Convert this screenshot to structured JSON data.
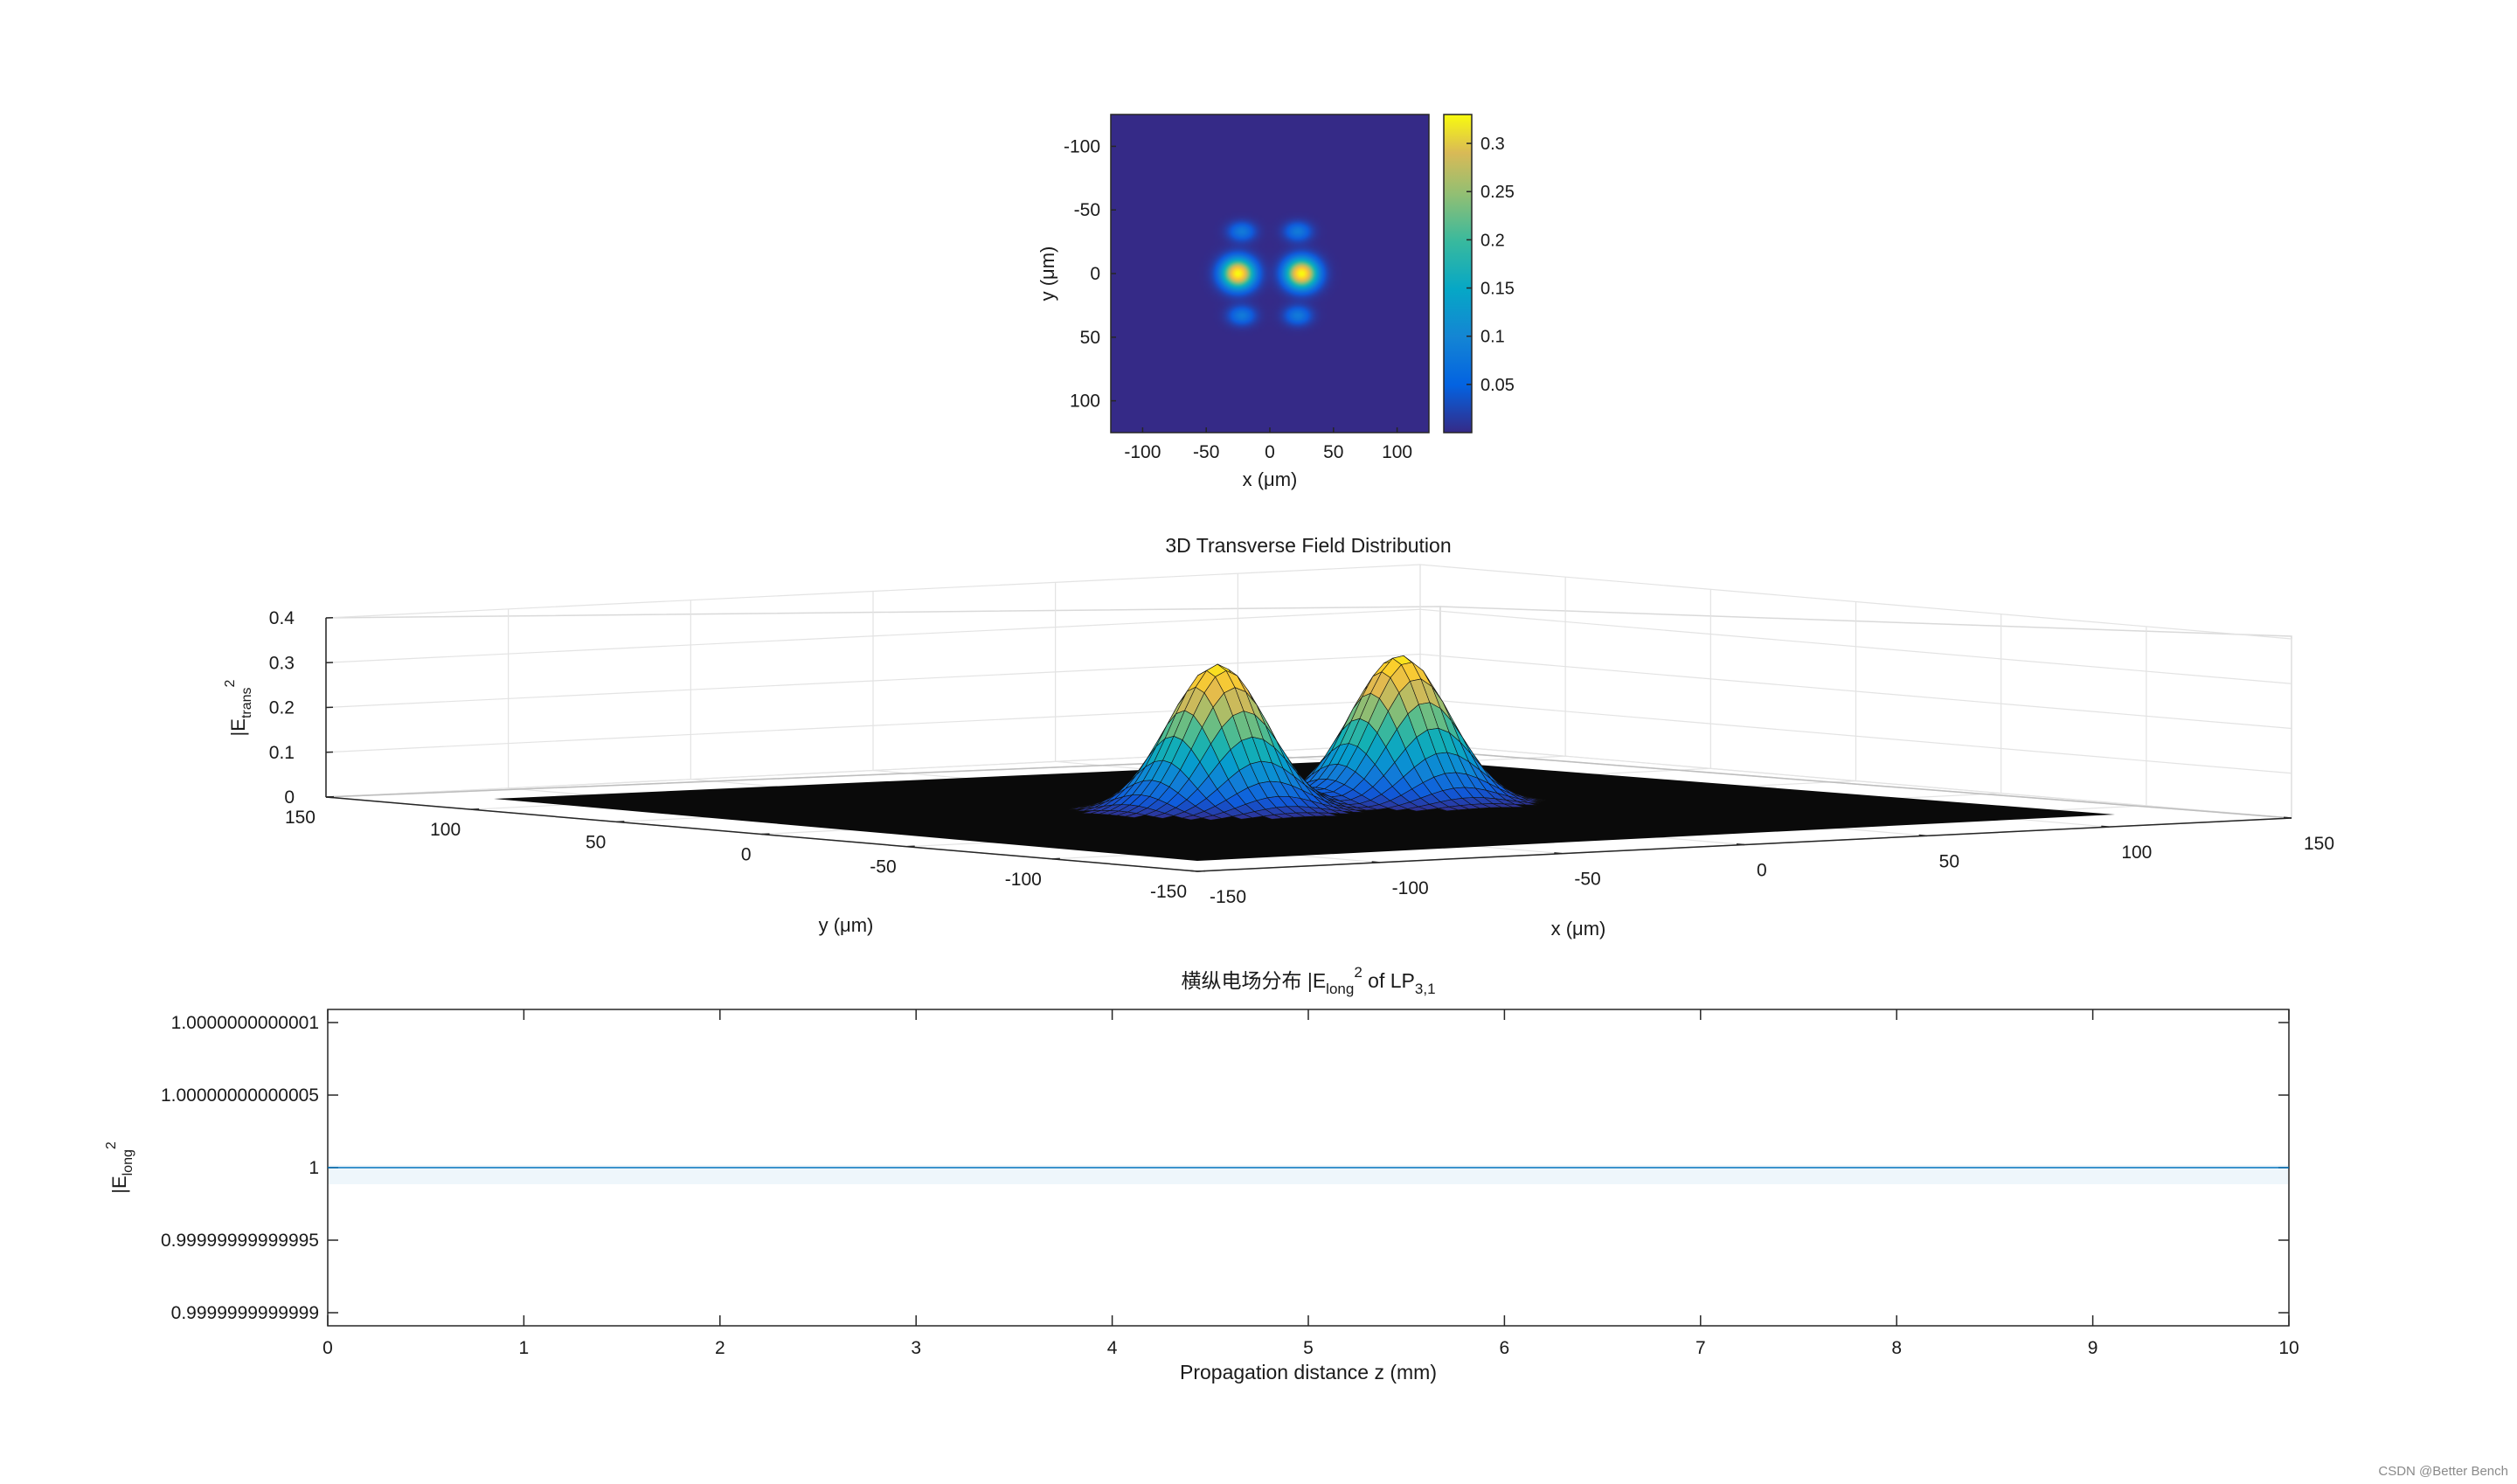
{
  "chart_data": [
    {
      "type": "heatmap",
      "xlabel": "x (μm)",
      "ylabel": "y (μm)",
      "xlim": [
        -125,
        125
      ],
      "ylim": [
        -125,
        125
      ],
      "y_reversed": true,
      "xticks": [
        -100,
        -50,
        0,
        50,
        100
      ],
      "yticks": [
        -100,
        -50,
        0,
        50,
        100
      ],
      "colormap": "parula",
      "colorbar": {
        "lim": [
          0,
          0.33
        ],
        "ticks": [
          0.05,
          0.1,
          0.15,
          0.2,
          0.25,
          0.3
        ],
        "tick_labels": [
          "0.05",
          "0.1",
          "0.15",
          "0.2",
          "0.25",
          "0.3"
        ]
      },
      "field": {
        "description_mode": "LP31 intensity: two main lobes on x-axis, four weak side lobes",
        "main_lobes": [
          {
            "x": -25,
            "y": 0,
            "value": 0.33
          },
          {
            "x": 25,
            "y": 0,
            "value": 0.33
          }
        ],
        "side_lobes": [
          {
            "x": -22,
            "y": -33,
            "value": 0.07
          },
          {
            "x": 22,
            "y": -33,
            "value": 0.07
          },
          {
            "x": -22,
            "y": 33,
            "value": 0.07
          },
          {
            "x": 22,
            "y": 33,
            "value": 0.07
          }
        ]
      },
      "tick_label_values": {
        "x": [
          "-100",
          "-50",
          "0",
          "50",
          "100"
        ],
        "y": [
          "-100",
          "-50",
          "0",
          "50",
          "100"
        ]
      }
    },
    {
      "type": "surface",
      "title": "3D Transverse Field Distribution",
      "xlabel": "x (μm)",
      "ylabel": "y (μm)",
      "zlabel_base": "|E",
      "zlabel_sub": "trans",
      "zlabel_sup": "2",
      "xlim": [
        -150,
        150
      ],
      "ylim": [
        -150,
        150
      ],
      "zlim": [
        0,
        0.4
      ],
      "xticks": [
        "-150",
        "-100",
        "-50",
        "0",
        "50",
        "100",
        "150"
      ],
      "yticks": [
        "150",
        "100",
        "50",
        "0",
        "-50",
        "-100",
        "-150"
      ],
      "zticks": [
        "0",
        "0.1",
        "0.2",
        "0.3",
        "0.4"
      ],
      "grid": true,
      "peaks": [
        {
          "x": -25,
          "y": 0,
          "z": 0.33
        },
        {
          "x": 25,
          "y": 0,
          "z": 0.33
        }
      ]
    },
    {
      "type": "line",
      "title_cjk": "横纵电场分布",
      "title_rest": " |E",
      "title_sub1": "long",
      "title_sup": "2",
      "title_of": " of LP",
      "title_sub2": "3,1",
      "xlabel": "Propagation distance z (mm)",
      "ylabel_base": "|E",
      "ylabel_sub": "long",
      "ylabel_sup": "2",
      "xlim": [
        0,
        10
      ],
      "ylim": [
        0.9999999999999,
        1.0000000000001
      ],
      "xticks": [
        "0",
        "1",
        "2",
        "3",
        "4",
        "5",
        "6",
        "7",
        "8",
        "9",
        "10"
      ],
      "yticks": [
        "0.9999999999999",
        "0.99999999999995",
        "1",
        "1.00000000000005",
        "1.0000000000001"
      ],
      "series": [
        {
          "x": [
            0,
            10
          ],
          "y": [
            1,
            1
          ],
          "color": "#0072bd"
        }
      ]
    }
  ],
  "footer": {
    "watermark": "CSDN @Better Bench"
  }
}
